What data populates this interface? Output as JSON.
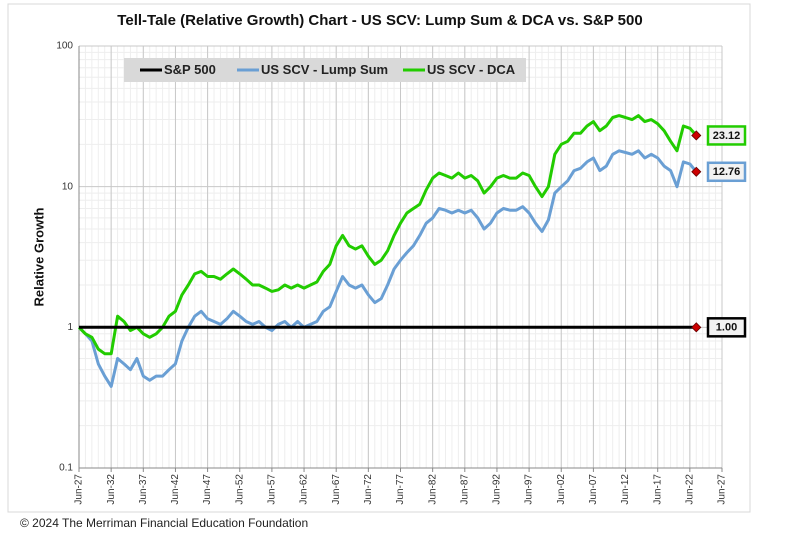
{
  "chart_data": {
    "type": "line",
    "title": "Tell-Tale (Relative Growth) Chart - US SCV: Lump Sum & DCA vs. S&P 500",
    "y_label": "Relative Growth",
    "footer": "© 2024 The Merriman Financial Education Foundation",
    "ylog": true,
    "grid": true,
    "ylim": [
      0.1,
      100
    ],
    "yticks": [
      0.1,
      1,
      10,
      100
    ],
    "xlim": [
      1927,
      2027
    ],
    "xticks": [
      {
        "value": 1927,
        "label": "Jun-27"
      },
      {
        "value": 1932,
        "label": "Jun-32"
      },
      {
        "value": 1937,
        "label": "Jun-37"
      },
      {
        "value": 1942,
        "label": "Jun-42"
      },
      {
        "value": 1947,
        "label": "Jun-47"
      },
      {
        "value": 1952,
        "label": "Jun-52"
      },
      {
        "value": 1957,
        "label": "Jun-57"
      },
      {
        "value": 1962,
        "label": "Jun-62"
      },
      {
        "value": 1967,
        "label": "Jun-67"
      },
      {
        "value": 1972,
        "label": "Jun-72"
      },
      {
        "value": 1977,
        "label": "Jun-77"
      },
      {
        "value": 1982,
        "label": "Jun-82"
      },
      {
        "value": 1987,
        "label": "Jun-87"
      },
      {
        "value": 1992,
        "label": "Jun-92"
      },
      {
        "value": 1997,
        "label": "Jun-97"
      },
      {
        "value": 2002,
        "label": "Jun-02"
      },
      {
        "value": 2007,
        "label": "Jun-07"
      },
      {
        "value": 2012,
        "label": "Jun-12"
      },
      {
        "value": 2017,
        "label": "Jun-17"
      },
      {
        "value": 2022,
        "label": "Jun-22"
      },
      {
        "value": 2027,
        "label": "Jun-27"
      }
    ],
    "x": [
      1927,
      1928,
      1929,
      1930,
      1931,
      1932,
      1933,
      1934,
      1935,
      1936,
      1937,
      1938,
      1939,
      1940,
      1941,
      1942,
      1943,
      1944,
      1945,
      1946,
      1947,
      1948,
      1949,
      1950,
      1951,
      1952,
      1953,
      1954,
      1955,
      1956,
      1957,
      1958,
      1959,
      1960,
      1961,
      1962,
      1963,
      1964,
      1965,
      1966,
      1967,
      1968,
      1969,
      1970,
      1971,
      1972,
      1973,
      1974,
      1975,
      1976,
      1977,
      1978,
      1979,
      1980,
      1981,
      1982,
      1983,
      1984,
      1985,
      1986,
      1987,
      1988,
      1989,
      1990,
      1991,
      1992,
      1993,
      1994,
      1995,
      1996,
      1997,
      1998,
      1999,
      2000,
      2001,
      2002,
      2003,
      2004,
      2005,
      2006,
      2007,
      2008,
      2009,
      2010,
      2011,
      2012,
      2013,
      2014,
      2015,
      2016,
      2017,
      2018,
      2019,
      2020,
      2021,
      2022,
      2023
    ],
    "series": [
      {
        "name": "S&P 500",
        "color": "#000000",
        "end_label": "1.00",
        "values": [
          1,
          1,
          1,
          1,
          1,
          1,
          1,
          1,
          1,
          1,
          1,
          1,
          1,
          1,
          1,
          1,
          1,
          1,
          1,
          1,
          1,
          1,
          1,
          1,
          1,
          1,
          1,
          1,
          1,
          1,
          1,
          1,
          1,
          1,
          1,
          1,
          1,
          1,
          1,
          1,
          1,
          1,
          1,
          1,
          1,
          1,
          1,
          1,
          1,
          1,
          1,
          1,
          1,
          1,
          1,
          1,
          1,
          1,
          1,
          1,
          1,
          1,
          1,
          1,
          1,
          1,
          1,
          1,
          1,
          1,
          1,
          1,
          1,
          1,
          1,
          1,
          1,
          1,
          1,
          1,
          1,
          1,
          1,
          1,
          1,
          1,
          1,
          1,
          1,
          1,
          1,
          1,
          1,
          1,
          1,
          1,
          1
        ]
      },
      {
        "name": "US SCV - Lump Sum",
        "color": "#6a9fd4",
        "end_label": "12.76",
        "values": [
          1.0,
          0.9,
          0.8,
          0.55,
          0.45,
          0.38,
          0.6,
          0.55,
          0.5,
          0.6,
          0.45,
          0.42,
          0.45,
          0.45,
          0.5,
          0.55,
          0.8,
          1.0,
          1.2,
          1.3,
          1.15,
          1.1,
          1.05,
          1.15,
          1.3,
          1.2,
          1.1,
          1.05,
          1.1,
          1.0,
          0.95,
          1.05,
          1.1,
          1.0,
          1.1,
          1.0,
          1.05,
          1.1,
          1.3,
          1.4,
          1.8,
          2.3,
          2.0,
          1.9,
          2.0,
          1.7,
          1.5,
          1.6,
          2.0,
          2.6,
          3.0,
          3.4,
          3.8,
          4.5,
          5.5,
          6.0,
          7.0,
          6.8,
          6.5,
          6.8,
          6.5,
          6.8,
          6.0,
          5.0,
          5.5,
          6.5,
          7.0,
          6.8,
          6.8,
          7.2,
          6.5,
          5.5,
          4.8,
          5.8,
          9.0,
          10.0,
          11.0,
          13.0,
          13.5,
          15.0,
          16.0,
          13.0,
          14.0,
          17.0,
          18.0,
          17.5,
          17.0,
          18.0,
          16.0,
          17.0,
          16.0,
          14.0,
          13.0,
          10.0,
          15.0,
          14.5,
          12.76
        ]
      },
      {
        "name": "US SCV - DCA",
        "color": "#22cc00",
        "end_label": "23.12",
        "values": [
          1.0,
          0.9,
          0.85,
          0.7,
          0.65,
          0.65,
          1.2,
          1.1,
          0.95,
          1.0,
          0.9,
          0.85,
          0.9,
          1.0,
          1.2,
          1.3,
          1.7,
          2.0,
          2.4,
          2.5,
          2.3,
          2.3,
          2.2,
          2.4,
          2.6,
          2.4,
          2.2,
          2.0,
          2.0,
          1.9,
          1.8,
          1.85,
          2.0,
          1.9,
          2.0,
          1.9,
          2.0,
          2.1,
          2.5,
          2.8,
          3.8,
          4.5,
          3.8,
          3.6,
          3.8,
          3.2,
          2.8,
          3.0,
          3.5,
          4.5,
          5.5,
          6.5,
          7.0,
          7.5,
          9.5,
          11.5,
          12.5,
          12.0,
          11.5,
          12.5,
          11.5,
          12.0,
          11.0,
          9.0,
          10.0,
          11.5,
          12.0,
          11.5,
          11.5,
          12.5,
          12.0,
          10.0,
          8.5,
          10,
          17,
          20,
          21,
          24,
          24,
          27,
          29,
          25,
          27,
          31,
          32,
          31,
          30,
          32,
          29,
          30,
          28,
          25,
          21,
          18,
          27,
          26,
          23.12
        ]
      }
    ]
  }
}
